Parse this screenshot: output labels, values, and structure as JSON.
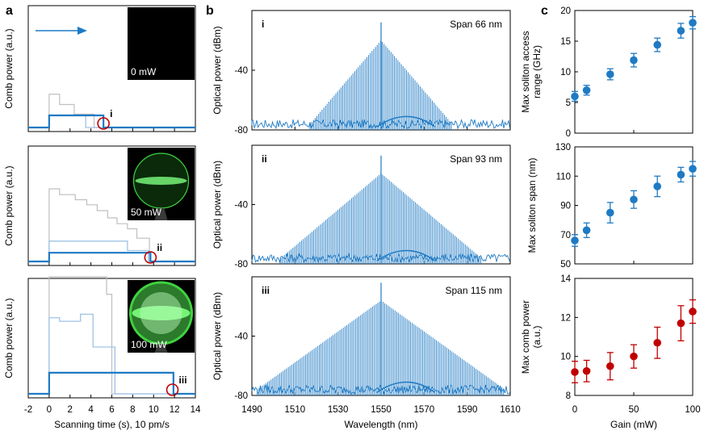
{
  "panel_labels": [
    "a",
    "b",
    "c"
  ],
  "chart_data": [
    {
      "type": "line",
      "panel": "a",
      "xlabel": "Scanning time (s), 10 pm/s",
      "ylabel": "Comb power (a.u.)",
      "xlim": [
        -2,
        14
      ],
      "xticks": [
        "-2",
        "0",
        "2",
        "4",
        "6",
        "8",
        "10",
        "12",
        "14"
      ],
      "subplots": [
        {
          "marker": "i",
          "inset_label": "0 mW",
          "circle_x": 5.2,
          "grey_steps": [
            [
              0,
              0.55
            ],
            [
              1.0,
              0.38
            ],
            [
              2.4,
              0.22
            ],
            [
              4.3,
              0.0
            ]
          ],
          "light_blue_steps": [
            [
              0,
              0.2
            ],
            [
              1.8,
              0.2
            ],
            [
              3.5,
              0.0
            ]
          ],
          "blue_steps": [
            [
              0,
              0.2
            ],
            [
              5.2,
              0.0
            ]
          ]
        },
        {
          "marker": "ii",
          "inset_label": "50 mW",
          "circle_x": 9.7,
          "grey_steps": [
            [
              0,
              1.0
            ],
            [
              1.0,
              0.92
            ],
            [
              2.5,
              0.85
            ],
            [
              3.6,
              0.78
            ],
            [
              4.6,
              0.7
            ],
            [
              5.6,
              0.6
            ],
            [
              6.5,
              0.52
            ],
            [
              7.5,
              0.45
            ],
            [
              8.4,
              0.32
            ],
            [
              9.6,
              0.0
            ]
          ],
          "light_blue_steps": [
            [
              0,
              0.28
            ],
            [
              7.5,
              0.15
            ],
            [
              9.5,
              0.0
            ]
          ],
          "blue_steps": [
            [
              0,
              0.12
            ],
            [
              9.7,
              0.0
            ]
          ]
        },
        {
          "marker": "iii",
          "inset_label": "100 mW",
          "circle_x": 11.8,
          "grey_steps": [
            [
              0,
              1.0
            ],
            [
              5.5,
              0.85
            ],
            [
              6.0,
              0.0
            ]
          ],
          "light_blue_steps": [
            [
              0,
              0.65
            ],
            [
              1.0,
              0.62
            ],
            [
              3.0,
              0.68
            ],
            [
              4.2,
              0.4
            ],
            [
              6.3,
              0.0
            ]
          ],
          "blue_steps": [
            [
              0,
              0.18
            ],
            [
              11.9,
              0.0
            ]
          ]
        }
      ]
    },
    {
      "type": "line",
      "panel": "b",
      "xlabel": "Wavelength (nm)",
      "ylabel": "Optical power (dBm)",
      "xlim": [
        1490,
        1610
      ],
      "ylim": [
        -80,
        0
      ],
      "xticks": [
        "1490",
        "1510",
        "1530",
        "1550",
        "1570",
        "1590",
        "1610"
      ],
      "yticks": [
        "-40",
        "-80"
      ],
      "pump_nm": 1550,
      "subplots": [
        {
          "marker": "i",
          "span_label": "Span 66 nm",
          "span_nm": 66,
          "peak_dBm": -20
        },
        {
          "marker": "ii",
          "span_label": "Span 93 nm",
          "span_nm": 93,
          "peak_dBm": -19
        },
        {
          "marker": "iii",
          "span_label": "Span 115 nm",
          "span_nm": 115,
          "peak_dBm": -16
        }
      ]
    },
    {
      "type": "scatter",
      "panel": "c",
      "xlabel": "Gain (mW)",
      "xlim": [
        0,
        100
      ],
      "xticks": [
        "0",
        "50",
        "100"
      ],
      "x": [
        0,
        10,
        30,
        50,
        70,
        90,
        100
      ],
      "subplots": [
        {
          "ylabel": "Max soliton access range (GHz)",
          "ylabel_lines": [
            "Max soliton access",
            "range (GHz)"
          ],
          "ylim": [
            0,
            20
          ],
          "yticks": [
            "0",
            "5",
            "10",
            "15",
            "20"
          ],
          "color": "#1f7ac4",
          "values": [
            6,
            7,
            9.6,
            11.9,
            14.4,
            16.7,
            18
          ],
          "errors": [
            0.8,
            0.8,
            0.9,
            1.1,
            1.1,
            1.2,
            1.0
          ]
        },
        {
          "ylabel": "Max soliton span (nm)",
          "ylabel_lines": [
            "Max soliton span (nm)"
          ],
          "ylim": [
            50,
            130
          ],
          "yticks": [
            "50",
            "70",
            "90",
            "110",
            "130"
          ],
          "color": "#1f7ac4",
          "values": [
            66,
            73,
            85,
            94,
            103,
            111,
            115
          ],
          "errors": [
            4,
            5,
            7,
            6,
            7,
            5,
            5
          ]
        },
        {
          "ylabel": "Max comb power (a.u.)",
          "ylabel_lines": [
            "Max comb power",
            "(a.u.)"
          ],
          "ylim": [
            8,
            14
          ],
          "yticks": [
            "8",
            "10",
            "12",
            "14"
          ],
          "color": "#c00000",
          "values": [
            9.2,
            9.25,
            9.5,
            10.0,
            10.7,
            11.7,
            12.3
          ],
          "errors": [
            0.55,
            0.55,
            0.7,
            0.6,
            0.8,
            0.9,
            0.6
          ]
        }
      ]
    }
  ]
}
